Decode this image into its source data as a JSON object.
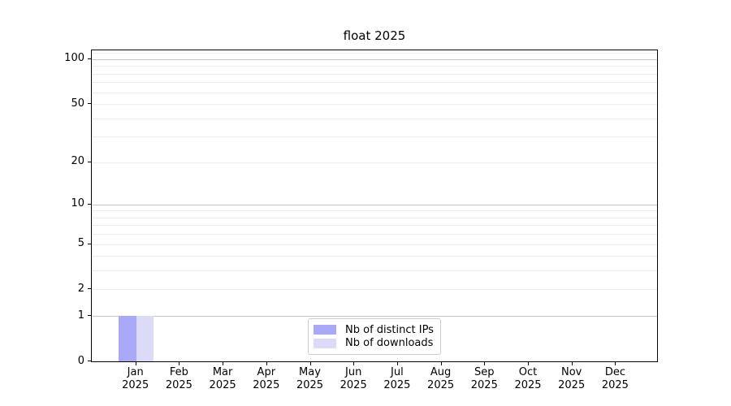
{
  "title": "float 2025",
  "chart_data": {
    "type": "bar",
    "title": "float 2025",
    "categories": [
      "Jan",
      "Feb",
      "Mar",
      "Apr",
      "May",
      "Jun",
      "Jul",
      "Aug",
      "Sep",
      "Oct",
      "Nov",
      "Dec"
    ],
    "category_year": "2025",
    "series": [
      {
        "name": "Nb of distinct IPs",
        "color": "#a9a9f7",
        "values": [
          1,
          0,
          0,
          0,
          0,
          0,
          0,
          0,
          0,
          0,
          0,
          0
        ]
      },
      {
        "name": "Nb of downloads",
        "color": "#dbdbf8",
        "values": [
          1,
          0,
          0,
          0,
          0,
          0,
          0,
          0,
          0,
          0,
          0,
          0
        ]
      }
    ],
    "xlabel": "",
    "ylabel": "",
    "yscale": "log1p",
    "ylim": [
      0,
      113
    ],
    "ytick_values": [
      0,
      1,
      2,
      5,
      10,
      20,
      50,
      100
    ],
    "grid": {
      "on": true,
      "major_values": [
        1,
        10,
        100
      ],
      "minor_values": [
        2,
        3,
        4,
        5,
        6,
        7,
        8,
        9,
        20,
        30,
        40,
        50,
        60,
        70,
        80,
        90,
        110
      ]
    },
    "legend": {
      "position": "inside-bottom-center",
      "entries": [
        "Nb of distinct IPs",
        "Nb of downloads"
      ]
    }
  }
}
